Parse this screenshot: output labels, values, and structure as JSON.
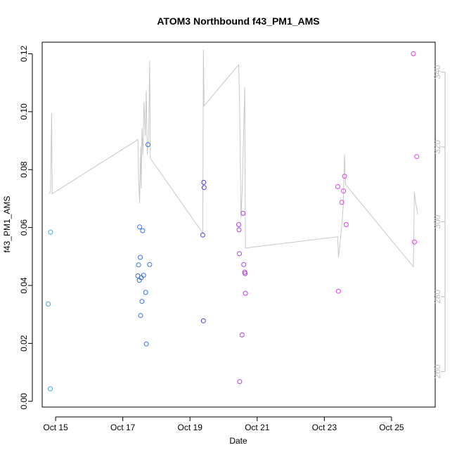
{
  "chart_data": {
    "type": "scatter",
    "title": "ATOM3 Northbound f43_PM1_AMS",
    "xlabel": "Date",
    "ylabel": "f43_PM1_AMS",
    "xlim": [
      14.6,
      26.3
    ],
    "ylim": [
      -0.002,
      0.124
    ],
    "x_ticks": [
      {
        "value": 15,
        "label": "Oct 15"
      },
      {
        "value": 17,
        "label": "Oct 17"
      },
      {
        "value": 19,
        "label": "Oct 19"
      },
      {
        "value": 21,
        "label": "Oct 21"
      },
      {
        "value": 23,
        "label": "Oct 23"
      },
      {
        "value": 25,
        "label": "Oct 25"
      }
    ],
    "y_ticks": [
      {
        "value": 0.0,
        "label": "0.00"
      },
      {
        "value": 0.02,
        "label": "0.02"
      },
      {
        "value": 0.04,
        "label": "0.04"
      },
      {
        "value": 0.06,
        "label": "0.06"
      },
      {
        "value": 0.08,
        "label": "0.08"
      },
      {
        "value": 0.1,
        "label": "0.10"
      },
      {
        "value": 0.12,
        "label": "0.12"
      }
    ],
    "y2lim": [
      250.5,
      348
    ],
    "y2_ticks": [
      {
        "value": 260,
        "label": "260"
      },
      {
        "value": 280,
        "label": "280"
      },
      {
        "value": 300,
        "label": "300"
      },
      {
        "value": 320,
        "label": "320"
      },
      {
        "value": 340,
        "label": "340"
      }
    ],
    "points": [
      {
        "x": 14.78,
        "y": 0.0336,
        "color": "#3fa6e0"
      },
      {
        "x": 14.85,
        "y": 0.0584,
        "color": "#3fa6e0"
      },
      {
        "x": 14.84,
        "y": 0.0043,
        "color": "#3fa6e0"
      },
      {
        "x": 17.45,
        "y": 0.0433,
        "color": "#3a6fe0"
      },
      {
        "x": 17.47,
        "y": 0.0471,
        "color": "#3a6fe0"
      },
      {
        "x": 17.49,
        "y": 0.0418,
        "color": "#3a6fe0"
      },
      {
        "x": 17.5,
        "y": 0.0602,
        "color": "#3a6fe0"
      },
      {
        "x": 17.52,
        "y": 0.0497,
        "color": "#3a6fe0"
      },
      {
        "x": 17.53,
        "y": 0.0296,
        "color": "#3a6fe0"
      },
      {
        "x": 17.55,
        "y": 0.0427,
        "color": "#3a6fe0"
      },
      {
        "x": 17.57,
        "y": 0.0345,
        "color": "#3a6fe0"
      },
      {
        "x": 17.59,
        "y": 0.0589,
        "color": "#3a6fe0"
      },
      {
        "x": 17.62,
        "y": 0.0435,
        "color": "#3a6fe0"
      },
      {
        "x": 17.68,
        "y": 0.0376,
        "color": "#3a6fe0"
      },
      {
        "x": 17.7,
        "y": 0.0198,
        "color": "#3a6fe0"
      },
      {
        "x": 17.75,
        "y": 0.0886,
        "color": "#3a6fe0"
      },
      {
        "x": 17.8,
        "y": 0.0472,
        "color": "#3a6fe0"
      },
      {
        "x": 19.38,
        "y": 0.0574,
        "color": "#4a3ed8"
      },
      {
        "x": 19.4,
        "y": 0.0278,
        "color": "#4a3ed8"
      },
      {
        "x": 19.41,
        "y": 0.0756,
        "color": "#4a3ed8"
      },
      {
        "x": 19.42,
        "y": 0.0738,
        "color": "#4a3ed8"
      },
      {
        "x": 20.45,
        "y": 0.061,
        "color": "#b23ee0"
      },
      {
        "x": 20.46,
        "y": 0.0592,
        "color": "#b23ee0"
      },
      {
        "x": 20.47,
        "y": 0.051,
        "color": "#b23ee0"
      },
      {
        "x": 20.48,
        "y": 0.0068,
        "color": "#b23ee0"
      },
      {
        "x": 20.55,
        "y": 0.0229,
        "color": "#b23ee0"
      },
      {
        "x": 20.58,
        "y": 0.0649,
        "color": "#b23ee0"
      },
      {
        "x": 20.6,
        "y": 0.0472,
        "color": "#b23ee0"
      },
      {
        "x": 20.63,
        "y": 0.0446,
        "color": "#b23ee0"
      },
      {
        "x": 20.64,
        "y": 0.0441,
        "color": "#b23ee0"
      },
      {
        "x": 20.65,
        "y": 0.0373,
        "color": "#b23ee0"
      },
      {
        "x": 23.4,
        "y": 0.0741,
        "color": "#e03ee0"
      },
      {
        "x": 23.42,
        "y": 0.038,
        "color": "#e03ee0"
      },
      {
        "x": 23.52,
        "y": 0.0687,
        "color": "#e03ee0"
      },
      {
        "x": 23.57,
        "y": 0.0726,
        "color": "#e03ee0"
      },
      {
        "x": 23.6,
        "y": 0.0777,
        "color": "#e03ee0"
      },
      {
        "x": 23.65,
        "y": 0.061,
        "color": "#e03ee0"
      },
      {
        "x": 25.65,
        "y": 0.12,
        "color": "#e03ee0"
      },
      {
        "x": 25.68,
        "y": 0.055,
        "color": "#e03ee0"
      },
      {
        "x": 25.75,
        "y": 0.0845,
        "color": "#e03ee0"
      }
    ],
    "line_series": {
      "name": "right-axis series",
      "color": "#c8c8c8",
      "points": [
        [
          14.8,
          307.5
        ],
        [
          14.85,
          308
        ],
        [
          14.88,
          329
        ],
        [
          14.9,
          307.5
        ],
        [
          17.45,
          322
        ],
        [
          17.47,
          312
        ],
        [
          17.5,
          305
        ],
        [
          17.53,
          320
        ],
        [
          17.55,
          309
        ],
        [
          17.57,
          325
        ],
        [
          17.6,
          318
        ],
        [
          17.63,
          332
        ],
        [
          17.67,
          323
        ],
        [
          17.7,
          335
        ],
        [
          17.73,
          318
        ],
        [
          17.77,
          323
        ],
        [
          17.8,
          343
        ],
        [
          17.82,
          317
        ],
        [
          19.38,
          297
        ],
        [
          19.4,
          346
        ],
        [
          19.42,
          331
        ],
        [
          20.45,
          342
        ],
        [
          20.48,
          330
        ],
        [
          20.52,
          301
        ],
        [
          20.56,
          310
        ],
        [
          20.63,
          336
        ],
        [
          20.65,
          293
        ],
        [
          23.4,
          296
        ],
        [
          23.42,
          290.5
        ],
        [
          23.45,
          293
        ],
        [
          23.52,
          299
        ],
        [
          23.56,
          304
        ],
        [
          23.6,
          318
        ],
        [
          23.63,
          310
        ],
        [
          25.65,
          288
        ],
        [
          25.68,
          308
        ],
        [
          25.72,
          305
        ],
        [
          25.78,
          302
        ]
      ]
    }
  }
}
